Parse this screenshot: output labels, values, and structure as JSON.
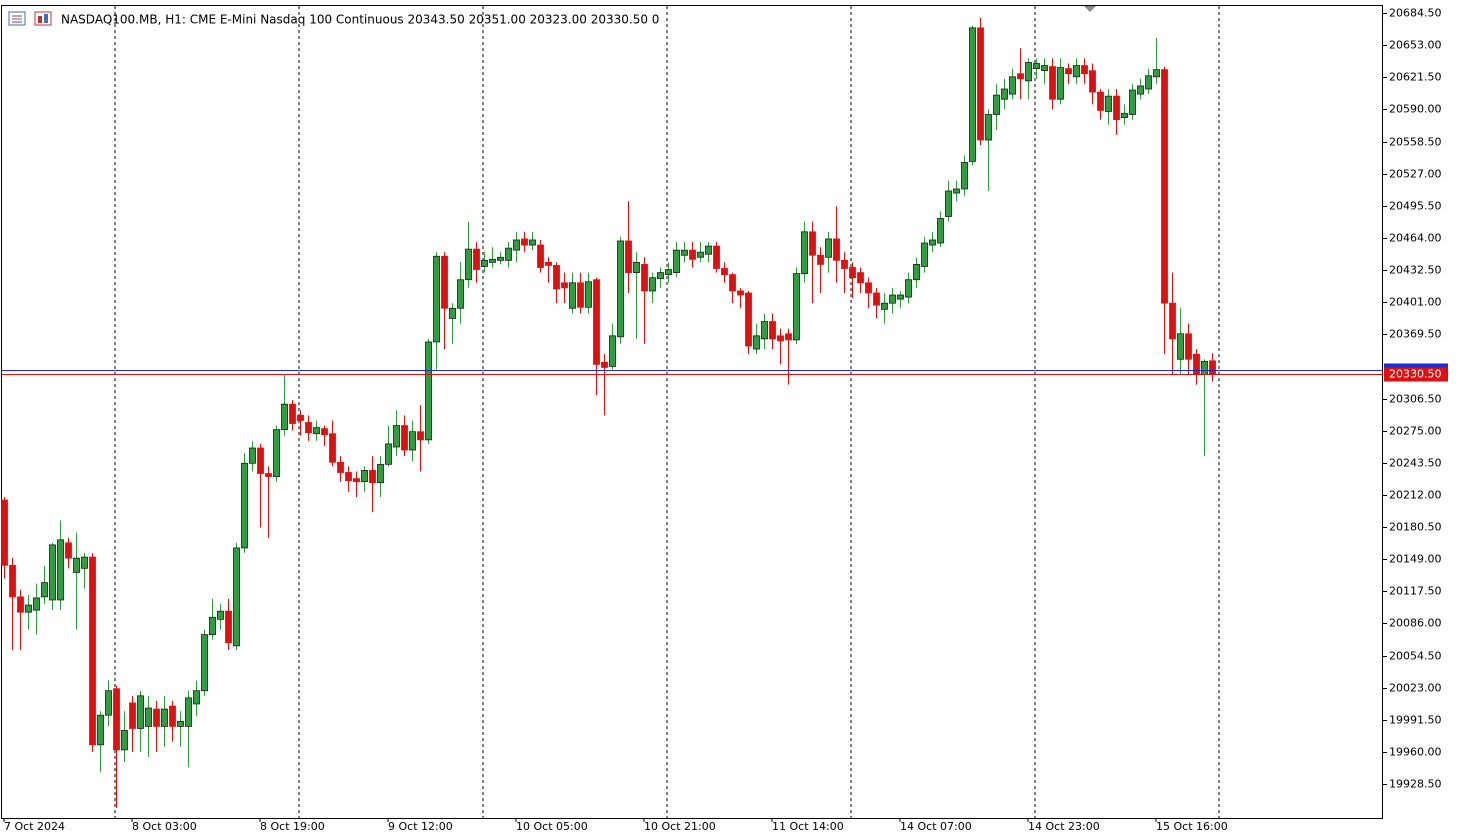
{
  "chart_data": {
    "type": "candlestick",
    "header": "NASDAQ100.MB, H1:  CME E-Mini Nasdaq 100 Continuous  20343.50 20351.00 20323.00 20330.50  0",
    "up_color": "#2e9e3e",
    "down_color": "#e01010",
    "ylim": [
      19895.2,
      20691.4
    ],
    "yticks": [
      {
        "value": 19928.5,
        "label": "19928.50"
      },
      {
        "value": 19960,
        "label": "19960.00"
      },
      {
        "value": 19991.5,
        "label": "19991.50"
      },
      {
        "value": 20023,
        "label": "20023.00"
      },
      {
        "value": 20054.5,
        "label": "20054.50"
      },
      {
        "value": 20086,
        "label": "20086.00"
      },
      {
        "value": 20117.5,
        "label": "20117.50"
      },
      {
        "value": 20149,
        "label": "20149.00"
      },
      {
        "value": 20180.5,
        "label": "20180.50"
      },
      {
        "value": 20212,
        "label": "20212.00"
      },
      {
        "value": 20243.5,
        "label": "20243.50"
      },
      {
        "value": 20275,
        "label": "20275.00"
      },
      {
        "value": 20306.5,
        "label": "20306.50"
      },
      {
        "value": 20369.5,
        "label": "20369.50"
      },
      {
        "value": 20401,
        "label": "20401.00"
      },
      {
        "value": 20432.5,
        "label": "20432.50"
      },
      {
        "value": 20464,
        "label": "20464.00"
      },
      {
        "value": 20495.5,
        "label": "20495.50"
      },
      {
        "value": 20527,
        "label": "20527.00"
      },
      {
        "value": 20558.5,
        "label": "20558.50"
      },
      {
        "value": 20590,
        "label": "20590.00"
      },
      {
        "value": 20621.5,
        "label": "20621.50"
      },
      {
        "value": 20653,
        "label": "20653.00"
      },
      {
        "value": 20684.5,
        "label": "20684.50"
      }
    ],
    "xticks": [
      {
        "value": 0,
        "label": "7 Oct 2024"
      },
      {
        "value": 16,
        "label": "8 Oct 03:00"
      },
      {
        "value": 32,
        "label": "8 Oct 19:00"
      },
      {
        "value": 48,
        "label": "9 Oct 12:00"
      },
      {
        "value": 64,
        "label": "10 Oct 05:00"
      },
      {
        "value": 80,
        "label": "10 Oct 21:00"
      },
      {
        "value": 96,
        "label": "11 Oct 14:00"
      },
      {
        "value": 112,
        "label": "14 Oct 07:00"
      },
      {
        "value": 128,
        "label": "14 Oct 23:00"
      },
      {
        "value": 144,
        "label": "15 Oct 16:00"
      }
    ],
    "last_price": {
      "value": 20330.5,
      "label": "20330.50"
    },
    "ask": 20334.5,
    "ohlc": [
      [
        20207,
        20210,
        20130,
        20143
      ],
      [
        20143,
        20150,
        20060,
        20112
      ],
      [
        20112,
        20119,
        20060,
        20097
      ],
      [
        20097,
        20114,
        20080,
        20104
      ],
      [
        20099,
        20125,
        20075,
        20111
      ],
      [
        20112,
        20142,
        20105,
        20126
      ],
      [
        20109,
        20165,
        20099,
        20163
      ],
      [
        20109,
        20187,
        20099,
        20168
      ],
      [
        20165,
        20170,
        20140,
        20150
      ],
      [
        20136,
        20175,
        20080,
        20150
      ],
      [
        20140,
        20155,
        20120,
        20151
      ],
      [
        20151,
        20155,
        19960,
        19967
      ],
      [
        19967,
        20000,
        19940,
        19996
      ],
      [
        19996,
        20030,
        19985,
        20020
      ],
      [
        20022,
        20025,
        19905,
        19962
      ],
      [
        19962,
        20000,
        19950,
        19981
      ],
      [
        20008,
        20015,
        19960,
        19983
      ],
      [
        19983,
        20020,
        19960,
        20015
      ],
      [
        19985,
        20015,
        19955,
        20003
      ],
      [
        20002,
        20010,
        19960,
        19985
      ],
      [
        19985,
        20015,
        19965,
        20002
      ],
      [
        20005,
        20010,
        19970,
        19985
      ],
      [
        19985,
        20000,
        19965,
        19990
      ],
      [
        19985,
        20020,
        19945,
        20013
      ],
      [
        20007,
        20030,
        19995,
        20020
      ],
      [
        20020,
        20080,
        20015,
        20075
      ],
      [
        20075,
        20110,
        20070,
        20092
      ],
      [
        20090,
        20105,
        20080,
        20098
      ],
      [
        20098,
        20110,
        20060,
        20067
      ],
      [
        20064,
        20165,
        20060,
        20160
      ],
      [
        20160,
        20253,
        20155,
        20243
      ],
      [
        20243,
        20265,
        20235,
        20258
      ],
      [
        20258,
        20262,
        20180,
        20233
      ],
      [
        20233,
        20240,
        20170,
        20230
      ],
      [
        20230,
        20280,
        20225,
        20276
      ],
      [
        20276,
        20330,
        20270,
        20301
      ],
      [
        20301,
        20305,
        20275,
        20282
      ],
      [
        20290,
        20295,
        20270,
        20285
      ],
      [
        20283,
        20290,
        20265,
        20273
      ],
      [
        20272,
        20285,
        20265,
        20278
      ],
      [
        20277,
        20280,
        20260,
        20271
      ],
      [
        20272,
        20285,
        20240,
        20244
      ],
      [
        20244,
        20250,
        20225,
        20234
      ],
      [
        20234,
        20240,
        20215,
        20226
      ],
      [
        20228,
        20235,
        20210,
        20225
      ],
      [
        20225,
        20240,
        20215,
        20236
      ],
      [
        20236,
        20250,
        20195,
        20224
      ],
      [
        20224,
        20250,
        20210,
        20242
      ],
      [
        20242,
        20280,
        20240,
        20262
      ],
      [
        20259,
        20295,
        20250,
        20280
      ],
      [
        20280,
        20290,
        20250,
        20256
      ],
      [
        20256,
        20285,
        20245,
        20274
      ],
      [
        20274,
        20300,
        20235,
        20266
      ],
      [
        20266,
        20365,
        20262,
        20362
      ],
      [
        20362,
        20450,
        20335,
        20446
      ],
      [
        20446,
        20450,
        20355,
        20395
      ],
      [
        20385,
        20400,
        20360,
        20395
      ],
      [
        20395,
        20440,
        20380,
        20423
      ],
      [
        20423,
        20480,
        20415,
        20453
      ],
      [
        20453,
        20460,
        20420,
        20433
      ],
      [
        20436,
        20450,
        20430,
        20442
      ],
      [
        20440,
        20455,
        20435,
        20443
      ],
      [
        20442,
        20450,
        20438,
        20445
      ],
      [
        20442,
        20460,
        20435,
        20454
      ],
      [
        20452,
        20470,
        20440,
        20462
      ],
      [
        20463,
        20470,
        20450,
        20457
      ],
      [
        20457,
        20470,
        20452,
        20462
      ],
      [
        20457,
        20462,
        20430,
        20435
      ],
      [
        20440,
        20445,
        20420,
        20437
      ],
      [
        20437,
        20440,
        20400,
        20414
      ],
      [
        20420,
        20430,
        20400,
        20415
      ],
      [
        20395,
        20430,
        20390,
        20420
      ],
      [
        20420,
        20430,
        20390,
        20396
      ],
      [
        20396,
        20430,
        20390,
        20421
      ],
      [
        20423,
        20425,
        20310,
        20340
      ],
      [
        20342,
        20350,
        20290,
        20337
      ],
      [
        20338,
        20380,
        20335,
        20368
      ],
      [
        20367,
        20465,
        20360,
        20461
      ],
      [
        20461,
        20500,
        20410,
        20430
      ],
      [
        20430,
        20450,
        20365,
        20440
      ],
      [
        20438,
        20445,
        20360,
        20412
      ],
      [
        20412,
        20430,
        20400,
        20425
      ],
      [
        20424,
        20435,
        20415,
        20430
      ],
      [
        20428,
        20440,
        20420,
        20433
      ],
      [
        20430,
        20460,
        20425,
        20452
      ],
      [
        20447,
        20460,
        20440,
        20452
      ],
      [
        20452,
        20460,
        20435,
        20443
      ],
      [
        20445,
        20460,
        20440,
        20450
      ],
      [
        20448,
        20460,
        20440,
        20456
      ],
      [
        20456,
        20460,
        20430,
        20434
      ],
      [
        20434,
        20440,
        20420,
        20428
      ],
      [
        20428,
        20430,
        20400,
        20412
      ],
      [
        20412,
        20415,
        20395,
        20408
      ],
      [
        20410,
        20412,
        20350,
        20358
      ],
      [
        20355,
        20380,
        20350,
        20368
      ],
      [
        20365,
        20390,
        20355,
        20382
      ],
      [
        20382,
        20390,
        20355,
        20365
      ],
      [
        20368,
        20375,
        20340,
        20363
      ],
      [
        20370,
        20375,
        20320,
        20364
      ],
      [
        20364,
        20435,
        20360,
        20429
      ],
      [
        20429,
        20480,
        20420,
        20470
      ],
      [
        20470,
        20480,
        20400,
        20447
      ],
      [
        20447,
        20455,
        20410,
        20438
      ],
      [
        20445,
        20470,
        20430,
        20463
      ],
      [
        20463,
        20495,
        20420,
        20442
      ],
      [
        20442,
        20450,
        20410,
        20434
      ],
      [
        20435,
        20440,
        20405,
        20425
      ],
      [
        20430,
        20435,
        20410,
        20420
      ],
      [
        20420,
        20425,
        20395,
        20410
      ],
      [
        20410,
        20415,
        20385,
        20398
      ],
      [
        20394,
        20410,
        20380,
        20400
      ],
      [
        20400,
        20415,
        20390,
        20408
      ],
      [
        20404,
        20412,
        20395,
        20408
      ],
      [
        20406,
        20430,
        20400,
        20423
      ],
      [
        20423,
        20445,
        20415,
        20438
      ],
      [
        20436,
        20465,
        20430,
        20459
      ],
      [
        20457,
        20470,
        20450,
        20462
      ],
      [
        20459,
        20490,
        20455,
        20483
      ],
      [
        20485,
        20520,
        20480,
        20510
      ],
      [
        20508,
        20520,
        20500,
        20512
      ],
      [
        20512,
        20545,
        20505,
        20538
      ],
      [
        20539,
        20672,
        20535,
        20670
      ],
      [
        20670,
        20680,
        20555,
        20560
      ],
      [
        20560,
        20590,
        20510,
        20585
      ],
      [
        20585,
        20615,
        20570,
        20604
      ],
      [
        20600,
        20620,
        20590,
        20610
      ],
      [
        20605,
        20630,
        20600,
        20622
      ],
      [
        20625,
        20650,
        20600,
        20620
      ],
      [
        20618,
        20640,
        20600,
        20636
      ],
      [
        20630,
        20640,
        20620,
        20635
      ],
      [
        20628,
        20640,
        20615,
        20633
      ],
      [
        20632,
        20640,
        20590,
        20600
      ],
      [
        20600,
        20640,
        20595,
        20631
      ],
      [
        20630,
        20635,
        20615,
        20625
      ],
      [
        20622,
        20640,
        20615,
        20633
      ],
      [
        20633,
        20640,
        20615,
        20625
      ],
      [
        20628,
        20635,
        20595,
        20607
      ],
      [
        20607,
        20610,
        20580,
        20589
      ],
      [
        20588,
        20610,
        20575,
        20603
      ],
      [
        20603,
        20610,
        20565,
        20580
      ],
      [
        20582,
        20595,
        20575,
        20586
      ],
      [
        20585,
        20615,
        20580,
        20609
      ],
      [
        20605,
        20620,
        20600,
        20613
      ],
      [
        20610,
        20630,
        20605,
        20623
      ],
      [
        20622,
        20660,
        20615,
        20629
      ],
      [
        20629,
        20632,
        20350,
        20400
      ],
      [
        20400,
        20430,
        20330,
        20365
      ],
      [
        20345,
        20395,
        20330,
        20370
      ],
      [
        20370,
        20380,
        20330,
        20345
      ],
      [
        20350,
        20355,
        20320,
        20330
      ],
      [
        20330,
        20345,
        20250,
        20343
      ],
      [
        20343.5,
        20351,
        20323,
        20330.5
      ]
    ]
  }
}
